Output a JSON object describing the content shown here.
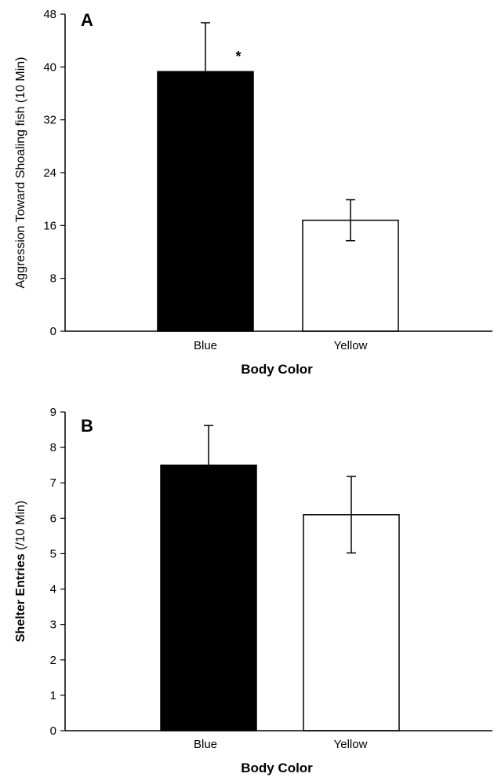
{
  "chart_data": [
    {
      "type": "bar",
      "panel_label": "A",
      "categories": [
        "Blue",
        "Yellow"
      ],
      "values": [
        39.3,
        16.8
      ],
      "error": [
        7.4,
        3.1
      ],
      "bar_colors": [
        "#000000",
        "#ffffff"
      ],
      "xlabel": "Body Color",
      "ylabel": "Aggression Toward Shoaling fish (10 Min)",
      "ylim": [
        0,
        48
      ],
      "yticks": [
        "0",
        "8",
        "16",
        "24",
        "32",
        "40",
        "48"
      ],
      "annotations": [
        {
          "text": "*",
          "category": "Blue"
        }
      ]
    },
    {
      "type": "bar",
      "panel_label": "B",
      "categories": [
        "Blue",
        "Yellow"
      ],
      "values": [
        7.5,
        6.1
      ],
      "error": [
        1.12,
        1.08
      ],
      "bar_colors": [
        "#000000",
        "#ffffff"
      ],
      "xlabel": "Body Color",
      "ylabel_bold": "Shelter Entries",
      "ylabel_rest": " (/10 Min)",
      "ylim": [
        0,
        9
      ],
      "yticks": [
        "0",
        "1",
        "2",
        "3",
        "4",
        "5",
        "6",
        "7",
        "8",
        "9"
      ],
      "annotations": []
    }
  ]
}
